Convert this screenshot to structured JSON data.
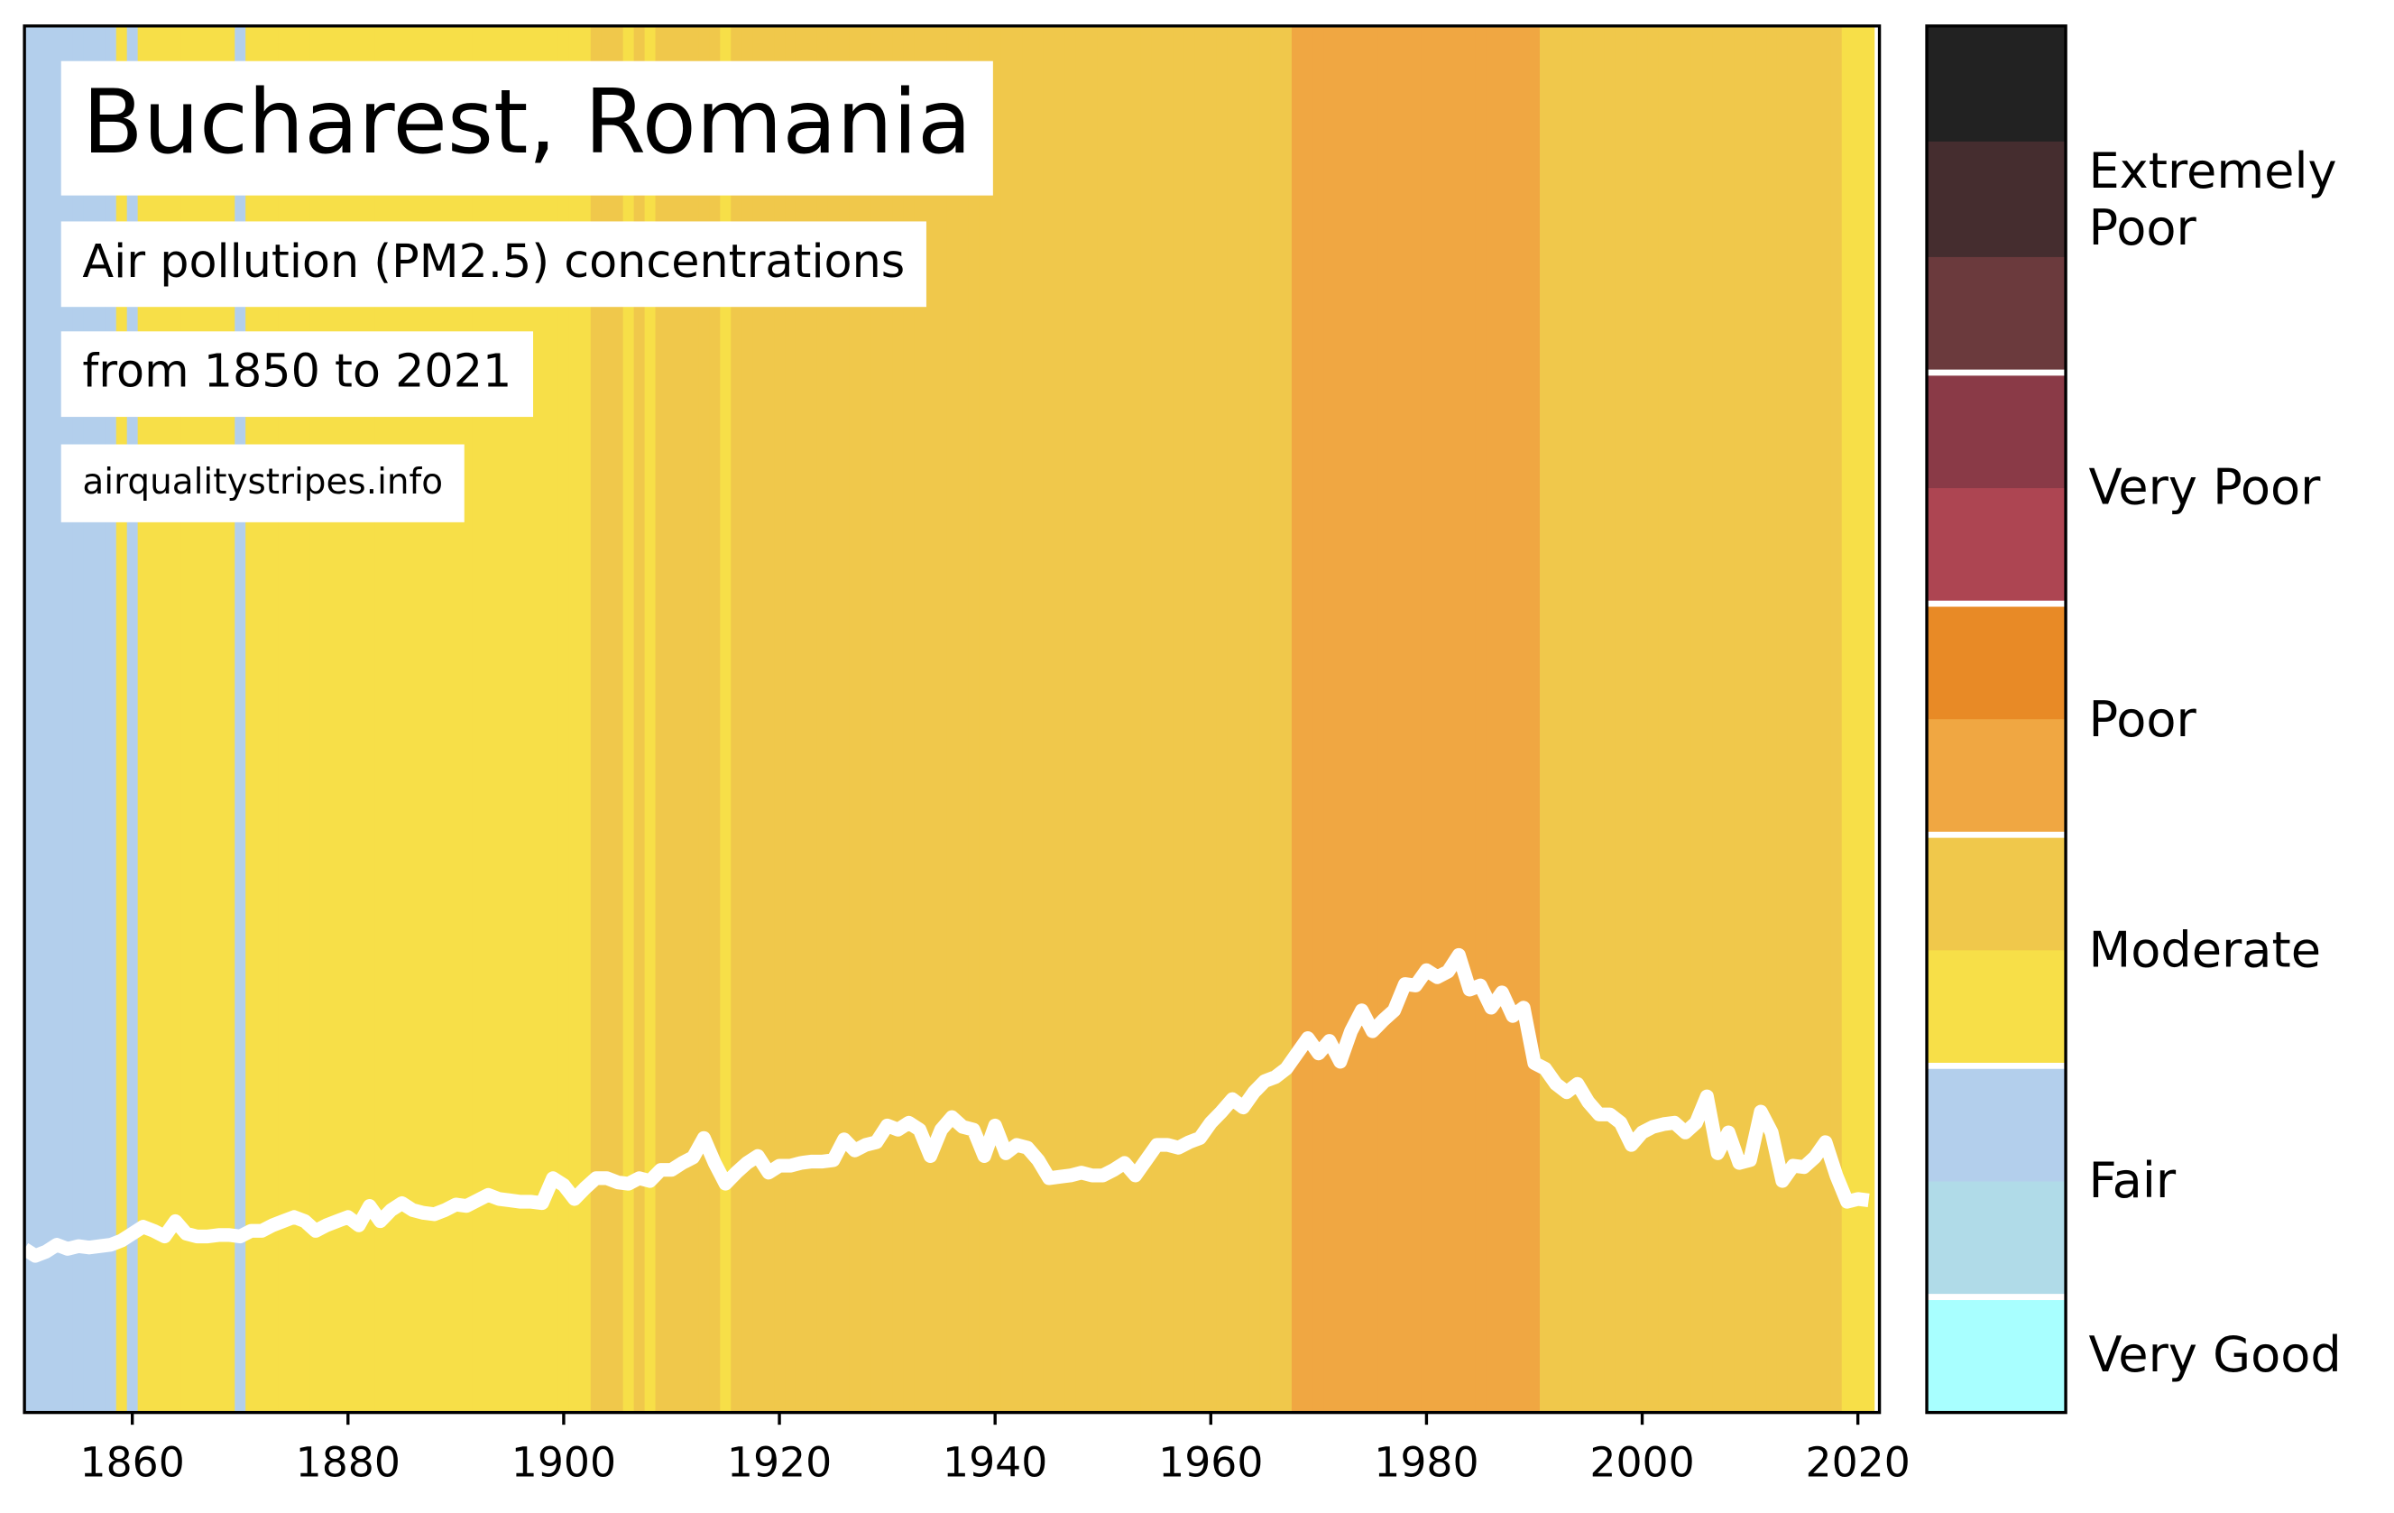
{
  "chart_data": {
    "type": "line",
    "title": "Bucharest, Romania",
    "subtitle": "Air pollution (PM2.5) concentrations",
    "period": "from 1850 to 2021",
    "source": "airqualitystripes.info",
    "x": [
      1850,
      1851,
      1852,
      1853,
      1854,
      1855,
      1856,
      1857,
      1858,
      1859,
      1860,
      1861,
      1862,
      1863,
      1864,
      1865,
      1866,
      1867,
      1868,
      1869,
      1870,
      1871,
      1872,
      1873,
      1874,
      1875,
      1876,
      1877,
      1878,
      1879,
      1880,
      1881,
      1882,
      1883,
      1884,
      1885,
      1886,
      1887,
      1888,
      1889,
      1890,
      1891,
      1892,
      1893,
      1894,
      1895,
      1896,
      1897,
      1898,
      1899,
      1900,
      1901,
      1902,
      1903,
      1904,
      1905,
      1906,
      1907,
      1908,
      1909,
      1910,
      1911,
      1912,
      1913,
      1914,
      1915,
      1916,
      1917,
      1918,
      1919,
      1920,
      1921,
      1922,
      1923,
      1924,
      1925,
      1926,
      1927,
      1928,
      1929,
      1930,
      1931,
      1932,
      1933,
      1934,
      1935,
      1936,
      1937,
      1938,
      1939,
      1940,
      1941,
      1942,
      1943,
      1944,
      1945,
      1946,
      1947,
      1948,
      1949,
      1950,
      1951,
      1952,
      1953,
      1954,
      1955,
      1956,
      1957,
      1958,
      1959,
      1960,
      1961,
      1962,
      1963,
      1964,
      1965,
      1966,
      1967,
      1968,
      1969,
      1970,
      1971,
      1972,
      1973,
      1974,
      1975,
      1976,
      1977,
      1978,
      1979,
      1980,
      1981,
      1982,
      1983,
      1984,
      1985,
      1986,
      1987,
      1988,
      1989,
      1990,
      1991,
      1992,
      1993,
      1994,
      1995,
      1996,
      1997,
      1998,
      1999,
      2000,
      2001,
      2002,
      2003,
      2004,
      2005,
      2006,
      2007,
      2008,
      2009,
      2010,
      2011,
      2012,
      2013,
      2014,
      2015,
      2016,
      2017,
      2018,
      2019,
      2020,
      2021
    ],
    "series": [
      {
        "color": "#ffffff",
        "values": [
          11.8,
          11.3,
          11.6,
          12.1,
          11.8,
          12.0,
          11.9,
          12.0,
          12.1,
          12.4,
          12.9,
          13.4,
          13.1,
          12.7,
          13.8,
          12.9,
          12.7,
          12.7,
          12.8,
          12.8,
          12.7,
          13.1,
          13.1,
          13.5,
          13.8,
          14.1,
          13.8,
          13.1,
          13.5,
          13.8,
          14.1,
          13.5,
          14.9,
          13.8,
          14.6,
          15.1,
          14.6,
          14.4,
          14.3,
          14.6,
          15.0,
          14.9,
          15.3,
          15.7,
          15.4,
          15.3,
          15.2,
          15.2,
          15.1,
          16.9,
          16.4,
          15.4,
          16.2,
          16.9,
          16.9,
          16.6,
          16.5,
          16.9,
          16.7,
          17.5,
          17.5,
          18.0,
          18.4,
          19.8,
          18.0,
          16.5,
          17.3,
          18.0,
          18.5,
          17.3,
          17.8,
          17.8,
          18.0,
          18.1,
          18.1,
          18.2,
          19.7,
          18.9,
          19.3,
          19.5,
          20.7,
          20.4,
          20.9,
          20.4,
          18.5,
          20.4,
          21.3,
          20.6,
          20.4,
          18.5,
          20.7,
          18.7,
          19.3,
          19.1,
          18.2,
          16.9,
          17.0,
          17.1,
          17.3,
          17.1,
          17.1,
          17.5,
          18.0,
          17.1,
          18.2,
          19.3,
          19.3,
          19.1,
          19.5,
          19.8,
          20.9,
          21.7,
          22.6,
          22.0,
          23.1,
          23.9,
          24.2,
          24.8,
          25.9,
          27.0,
          25.9,
          26.8,
          25.3,
          27.5,
          29.0,
          27.5,
          28.3,
          29.0,
          30.9,
          30.8,
          31.9,
          31.4,
          31.8,
          33.0,
          30.5,
          30.8,
          29.2,
          30.3,
          28.6,
          29.2,
          25.2,
          24.8,
          23.7,
          23.1,
          23.7,
          22.4,
          21.5,
          21.5,
          20.9,
          19.3,
          20.2,
          20.6,
          20.8,
          20.9,
          20.2,
          20.9,
          22.8,
          18.7,
          20.2,
          18.0,
          18.2,
          21.7,
          20.2,
          16.7,
          17.8,
          17.7,
          18.4,
          19.5,
          17.1,
          15.2,
          15.4,
          15.3
        ]
      }
    ],
    "stripe_colors": [
      "#b3cfec",
      "#b3cfec",
      "#b3cfec",
      "#b3cfec",
      "#b3cfec",
      "#b3cfec",
      "#b3cfec",
      "#b3cfec",
      "#b3cfec",
      "#f7df48",
      "#b3cfec",
      "#f7df48",
      "#f7df48",
      "#f7df48",
      "#f7df48",
      "#f7df48",
      "#f7df48",
      "#f7df48",
      "#f7df48",
      "#f7df48",
      "#b3cfec",
      "#f7df48",
      "#f7df48",
      "#f7df48",
      "#f7df48",
      "#f7df48",
      "#f7df48",
      "#f7df48",
      "#f7df48",
      "#f7df48",
      "#f7df48",
      "#f7df48",
      "#f7df48",
      "#f7df48",
      "#f7df48",
      "#f7df48",
      "#f7df48",
      "#f7df48",
      "#f7df48",
      "#f7df48",
      "#f7df48",
      "#f7df48",
      "#f7df48",
      "#f7df48",
      "#f7df48",
      "#f7df48",
      "#f7df48",
      "#f7df48",
      "#f7df48",
      "#f7df48",
      "#f7df48",
      "#f7df48",
      "#f7df48",
      "#f0c84b",
      "#f0c84b",
      "#f0c84b",
      "#f7df48",
      "#f0c84b",
      "#f7df48",
      "#f0c84b",
      "#f0c84b",
      "#f0c84b",
      "#f0c84b",
      "#f0c84b",
      "#f0c84b",
      "#f7df48",
      "#f0c84b",
      "#f0c84b",
      "#f0c84b",
      "#f0c84b",
      "#f0c84b",
      "#f0c84b",
      "#f0c84b",
      "#f0c84b",
      "#f0c84b",
      "#f0c84b",
      "#f0c84b",
      "#f0c84b",
      "#f0c84b",
      "#f0c84b",
      "#f0c84b",
      "#f0c84b",
      "#f0c84b",
      "#f0c84b",
      "#f0c84b",
      "#f0c84b",
      "#f0c84b",
      "#f0c84b",
      "#f0c84b",
      "#f0c84b",
      "#f0c84b",
      "#f0c84b",
      "#f0c84b",
      "#f0c84b",
      "#f0c84b",
      "#f0c84b",
      "#f0c84b",
      "#f0c84b",
      "#f0c84b",
      "#f0c84b",
      "#f0c84b",
      "#f0c84b",
      "#f0c84b",
      "#f0c84b",
      "#f0c84b",
      "#f0c84b",
      "#f0c84b",
      "#f0c84b",
      "#f0c84b",
      "#f0c84b",
      "#f0c84b",
      "#f0c84b",
      "#f0c84b",
      "#f0c84b",
      "#f0c84b",
      "#f0c84b",
      "#f0c84b",
      "#f0c84b",
      "#f0a742",
      "#f0a742",
      "#f0a742",
      "#f0a742",
      "#f0a742",
      "#f0a742",
      "#f0a742",
      "#f0a742",
      "#f0a742",
      "#f0a742",
      "#f0a742",
      "#f0a742",
      "#f0a742",
      "#f0a742",
      "#f0a742",
      "#f0a742",
      "#f0a742",
      "#f0a742",
      "#f0a742",
      "#f0a742",
      "#f0a742",
      "#f0a742",
      "#f0a742",
      "#f0c84b",
      "#f0c84b",
      "#f0c84b",
      "#f0c84b",
      "#f0c84b",
      "#f0c84b",
      "#f0c84b",
      "#f0c84b",
      "#f0c84b",
      "#f0c84b",
      "#f0c84b",
      "#f0c84b",
      "#f0c84b",
      "#f0c84b",
      "#f0c84b",
      "#f0c84b",
      "#f0c84b",
      "#f0c84b",
      "#f0c84b",
      "#f0c84b",
      "#f0c84b",
      "#f0c84b",
      "#f0c84b",
      "#f0c84b",
      "#f0c84b",
      "#f0c84b",
      "#f0c84b",
      "#f0c84b",
      "#f7df48",
      "#f7df48",
      "#f7df48"
    ],
    "xlim": [
      1850,
      2022
    ],
    "xticks": [
      1860,
      1880,
      1900,
      1920,
      1940,
      1960,
      1980,
      2000,
      2020
    ],
    "ylim": [
      0,
      100
    ],
    "colorbar": {
      "groups": [
        {
          "label": "Extremely Poor",
          "colors": [
            "#222222",
            "#452d2f",
            "#6b3a3d"
          ]
        },
        {
          "label": "Very Poor",
          "colors": [
            "#8a3a47",
            "#ad4552"
          ]
        },
        {
          "label": "Poor",
          "colors": [
            "#e88a26",
            "#f0a742"
          ]
        },
        {
          "label": "Moderate",
          "colors": [
            "#f0c84b",
            "#f7df48"
          ]
        },
        {
          "label": "Fair",
          "colors": [
            "#b3cfec",
            "#b0dbe8"
          ]
        },
        {
          "label": "Very Good",
          "colors": [
            "#a8ffff"
          ]
        }
      ]
    }
  }
}
